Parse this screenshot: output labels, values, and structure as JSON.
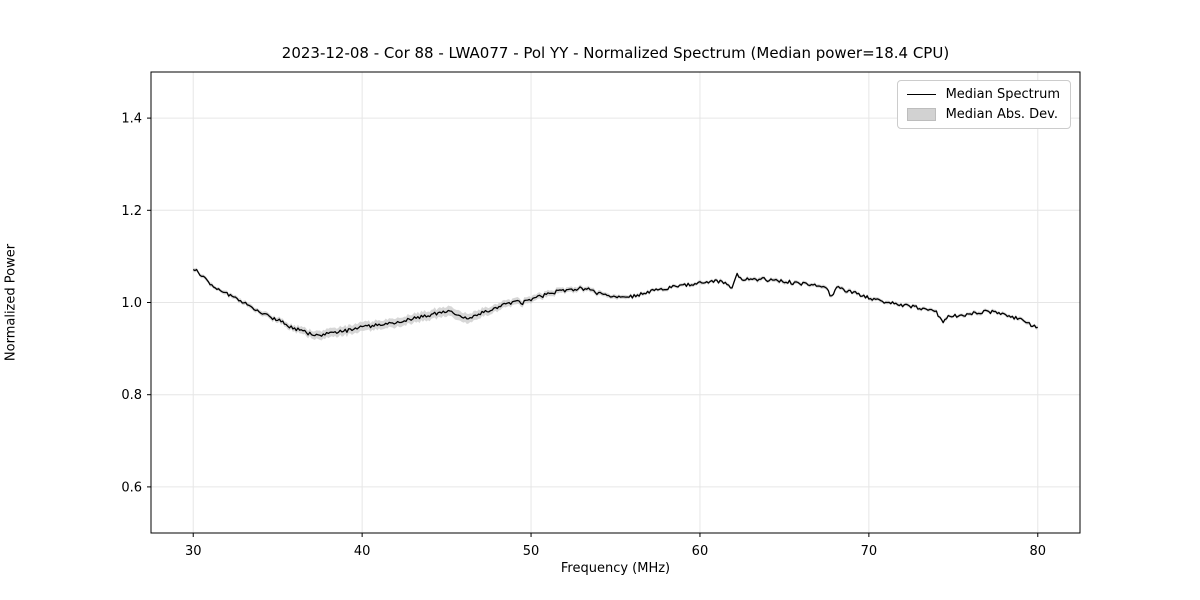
{
  "chart_data": {
    "type": "line",
    "title": "2023-12-08 - Cor 88 - LWA077 - Pol YY - Normalized Spectrum (Median power=18.4 CPU)",
    "xlabel": "Frequency (MHz)",
    "ylabel": "Normalized Power",
    "xlim": [
      27.5,
      82.5
    ],
    "ylim": [
      0.5,
      1.5
    ],
    "xticks": [
      30,
      40,
      50,
      60,
      70,
      80
    ],
    "yticks": [
      0.6,
      0.8,
      1.0,
      1.2,
      1.4
    ],
    "grid": true,
    "legend_position": "upper right",
    "colors": {
      "line": "#000000",
      "band": "#c9c9c9",
      "grid": "#e6e6e6",
      "spine": "#000000",
      "background": "#ffffff"
    },
    "noise_amplitude": 0.004,
    "series": [
      {
        "name": "Median Spectrum",
        "type": "line",
        "points": [
          [
            30.0,
            1.075
          ],
          [
            30.3,
            1.065
          ],
          [
            30.5,
            1.06
          ],
          [
            31.0,
            1.042
          ],
          [
            31.5,
            1.03
          ],
          [
            32.0,
            1.018
          ],
          [
            32.5,
            1.008
          ],
          [
            33.0,
            0.998
          ],
          [
            33.5,
            0.99
          ],
          [
            34.0,
            0.98
          ],
          [
            34.5,
            0.97
          ],
          [
            35.0,
            0.962
          ],
          [
            35.5,
            0.952
          ],
          [
            36.0,
            0.944
          ],
          [
            36.5,
            0.937
          ],
          [
            37.0,
            0.931
          ],
          [
            37.5,
            0.929
          ],
          [
            38.0,
            0.932
          ],
          [
            38.5,
            0.936
          ],
          [
            39.0,
            0.938
          ],
          [
            39.5,
            0.942
          ],
          [
            40.0,
            0.946
          ],
          [
            40.5,
            0.949
          ],
          [
            41.0,
            0.952
          ],
          [
            41.5,
            0.955
          ],
          [
            42.0,
            0.958
          ],
          [
            42.5,
            0.962
          ],
          [
            43.0,
            0.965
          ],
          [
            43.5,
            0.969
          ],
          [
            44.0,
            0.973
          ],
          [
            44.5,
            0.977
          ],
          [
            45.0,
            0.98
          ],
          [
            45.5,
            0.977
          ],
          [
            46.0,
            0.97
          ],
          [
            46.3,
            0.966
          ],
          [
            46.8,
            0.972
          ],
          [
            47.0,
            0.976
          ],
          [
            47.5,
            0.983
          ],
          [
            48.0,
            0.99
          ],
          [
            48.5,
            0.997
          ],
          [
            49.0,
            1.002
          ],
          [
            49.5,
            0.999
          ],
          [
            50.0,
            1.005
          ],
          [
            50.5,
            1.012
          ],
          [
            51.0,
            1.018
          ],
          [
            51.5,
            1.023
          ],
          [
            52.0,
            1.027
          ],
          [
            52.5,
            1.029
          ],
          [
            53.0,
            1.031
          ],
          [
            53.5,
            1.027
          ],
          [
            54.0,
            1.02
          ],
          [
            54.5,
            1.014
          ],
          [
            55.0,
            1.01
          ],
          [
            55.5,
            1.01
          ],
          [
            56.0,
            1.013
          ],
          [
            56.5,
            1.018
          ],
          [
            57.0,
            1.023
          ],
          [
            57.5,
            1.028
          ],
          [
            58.0,
            1.031
          ],
          [
            58.5,
            1.034
          ],
          [
            59.0,
            1.037
          ],
          [
            59.5,
            1.04
          ],
          [
            60.0,
            1.042
          ],
          [
            60.5,
            1.044
          ],
          [
            61.0,
            1.046
          ],
          [
            61.5,
            1.042
          ],
          [
            61.9,
            1.03
          ],
          [
            62.15,
            1.062
          ],
          [
            62.5,
            1.052
          ],
          [
            63.0,
            1.05
          ],
          [
            63.5,
            1.051
          ],
          [
            64.0,
            1.049
          ],
          [
            64.5,
            1.047
          ],
          [
            65.0,
            1.046
          ],
          [
            65.5,
            1.043
          ],
          [
            66.0,
            1.04
          ],
          [
            66.5,
            1.038
          ],
          [
            67.0,
            1.036
          ],
          [
            67.5,
            1.03
          ],
          [
            67.8,
            1.012
          ],
          [
            68.1,
            1.033
          ],
          [
            68.5,
            1.028
          ],
          [
            69.0,
            1.022
          ],
          [
            69.5,
            1.016
          ],
          [
            70.0,
            1.01
          ],
          [
            70.5,
            1.005
          ],
          [
            71.0,
            1.0
          ],
          [
            71.5,
            0.997
          ],
          [
            72.0,
            0.994
          ],
          [
            72.5,
            0.991
          ],
          [
            73.0,
            0.988
          ],
          [
            73.5,
            0.984
          ],
          [
            74.0,
            0.978
          ],
          [
            74.4,
            0.957
          ],
          [
            74.8,
            0.972
          ],
          [
            75.5,
            0.972
          ],
          [
            76.0,
            0.975
          ],
          [
            76.5,
            0.978
          ],
          [
            77.0,
            0.981
          ],
          [
            77.5,
            0.978
          ],
          [
            78.0,
            0.974
          ],
          [
            78.5,
            0.969
          ],
          [
            79.0,
            0.962
          ],
          [
            79.5,
            0.953
          ],
          [
            80.0,
            0.943
          ]
        ]
      }
    ],
    "band": {
      "name": "Median Abs. Dev.",
      "halfwidth_points": [
        [
          30.0,
          0.003
        ],
        [
          34.0,
          0.004
        ],
        [
          36.0,
          0.006
        ],
        [
          37.5,
          0.009
        ],
        [
          43.0,
          0.009
        ],
        [
          46.0,
          0.01
        ],
        [
          48.0,
          0.007
        ],
        [
          50.0,
          0.006
        ],
        [
          52.0,
          0.005
        ],
        [
          54.0,
          0.004
        ],
        [
          57.0,
          0.003
        ],
        [
          62.0,
          0.003
        ],
        [
          70.0,
          0.003
        ],
        [
          80.0,
          0.003
        ]
      ]
    }
  },
  "layout_text": {
    "x_tick_labels": [
      "30",
      "40",
      "50",
      "60",
      "70",
      "80"
    ],
    "y_tick_labels": [
      "0.6",
      "0.8",
      "1.0",
      "1.2",
      "1.4"
    ]
  }
}
